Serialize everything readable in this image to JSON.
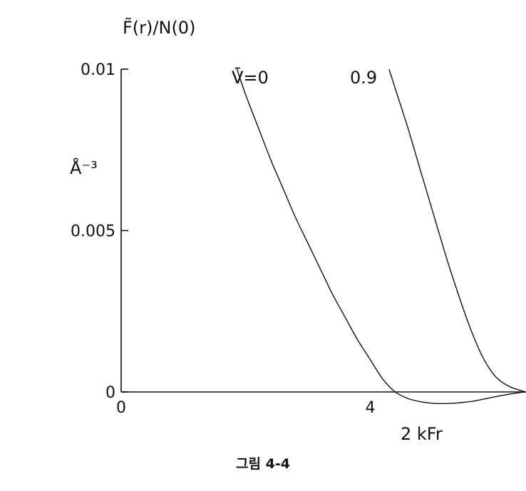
{
  "chart_data": {
    "type": "line",
    "ylabel": "F̃(r)/N(0)",
    "yunit": "Å⁻³",
    "xlabel": "2 kFr",
    "xlim": [
      0,
      6.5
    ],
    "ylim": [
      -0.0006,
      0.01
    ],
    "yticks": [
      {
        "value": 0,
        "label": "0"
      },
      {
        "value": 0.005,
        "label": "0.005"
      },
      {
        "value": 0.01,
        "label": "0.01"
      }
    ],
    "xticks": [
      {
        "value": 0,
        "label": "0"
      },
      {
        "value": 4,
        "label": "4"
      }
    ],
    "series": [
      {
        "name": "V̄=0",
        "x": [
          1.86,
          2.0,
          2.2,
          2.4,
          2.6,
          2.8,
          3.0,
          3.2,
          3.4,
          3.6,
          3.8,
          4.0,
          4.2,
          4.4,
          4.6,
          4.8,
          5.0,
          5.2,
          5.4,
          5.6,
          5.8,
          6.0,
          6.2,
          6.4,
          6.5
        ],
        "y": [
          0.01,
          0.0092,
          0.0082,
          0.0072,
          0.0063,
          0.0054,
          0.0046,
          0.0038,
          0.003,
          0.0023,
          0.0016,
          0.001,
          0.0004,
          0.0,
          -0.0002,
          -0.0003,
          -0.00035,
          -0.00036,
          -0.00034,
          -0.0003,
          -0.00023,
          -0.00015,
          -8e-05,
          -2e-05,
          0.0
        ]
      },
      {
        "name": "0.9",
        "x": [
          4.3,
          4.4,
          4.6,
          4.8,
          5.0,
          5.2,
          5.4,
          5.6,
          5.8,
          6.0,
          6.2,
          6.4,
          6.5
        ],
        "y": [
          0.01,
          0.0094,
          0.0082,
          0.0069,
          0.0056,
          0.0043,
          0.0031,
          0.002,
          0.0011,
          0.0005,
          0.0002,
          5e-05,
          0.0
        ]
      }
    ]
  },
  "caption": "그림 4-4"
}
